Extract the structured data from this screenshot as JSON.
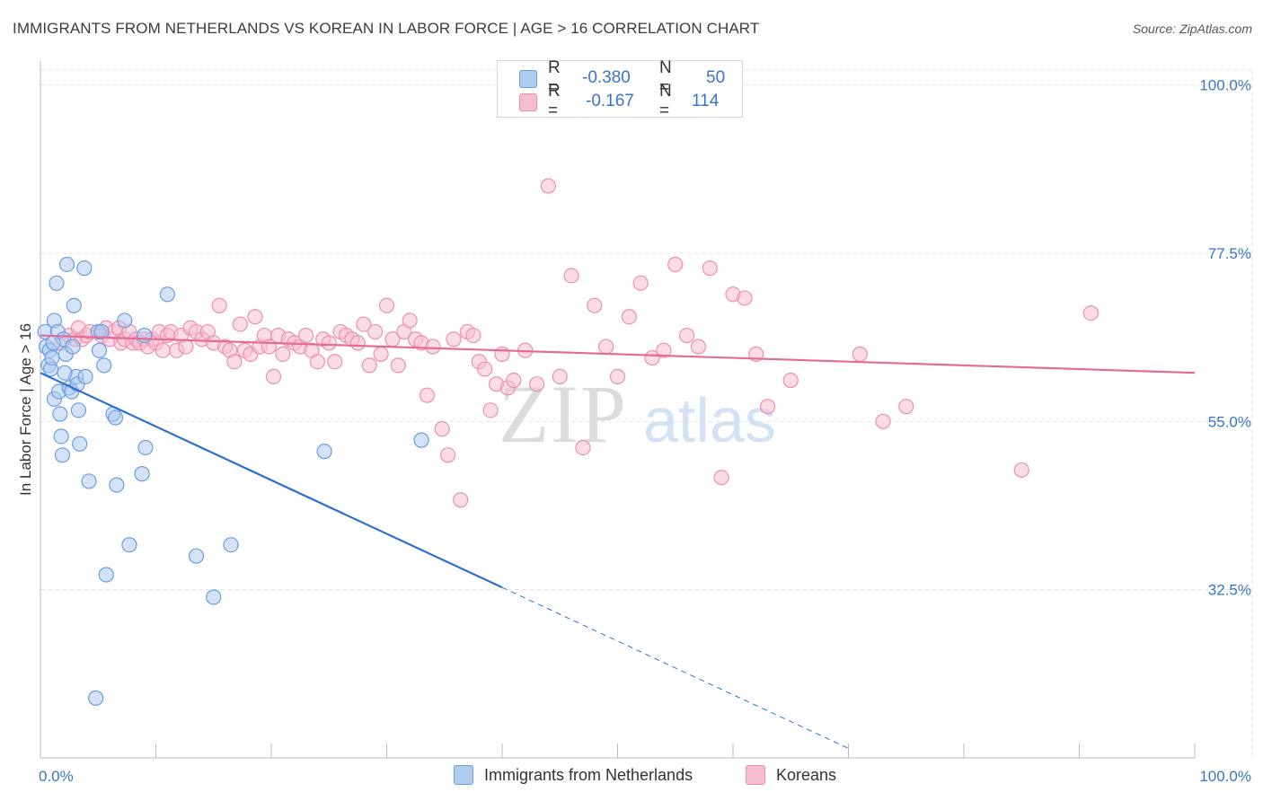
{
  "title": "IMMIGRANTS FROM NETHERLANDS VS KOREAN IN LABOR FORCE | AGE > 16 CORRELATION CHART",
  "source": "Source: ZipAtlas.com",
  "watermark": {
    "zip": "ZIP",
    "atlas": "atlas"
  },
  "legend": {
    "rows": [
      {
        "r_label": "R =",
        "r_value": "-0.380",
        "n_label": "N =",
        "n_value": "50"
      },
      {
        "r_label": "R =",
        "r_value": "-0.167",
        "n_label": "N =",
        "n_value": "114"
      }
    ]
  },
  "bottom_legend": {
    "series1": "Immigrants from Netherlands",
    "series2": "Koreans"
  },
  "colors": {
    "blue_fill": "#aecbf0",
    "blue_stroke": "#6b9de0",
    "blue_line": "#2f6fd1",
    "pink_fill": "#f6bfd1",
    "pink_stroke": "#ec8fb0",
    "pink_line": "#e46b94",
    "axis_label": "#3a74c9",
    "grid": "#e3e3e3"
  },
  "chart_data": {
    "type": "scatter",
    "title": "IMMIGRANTS FROM NETHERLANDS VS KOREAN IN LABOR FORCE | AGE > 16 CORRELATION CHART",
    "xlabel": "",
    "ylabel": "In Labor Force | Age > 16",
    "xlim": [
      0,
      100
    ],
    "ylim": [
      10,
      102
    ],
    "x_tick_labels": [
      "0.0%",
      "100.0%"
    ],
    "y_ticks": [
      32.5,
      55.0,
      77.5,
      100.0
    ],
    "y_tick_labels": [
      "32.5%",
      "55.0%",
      "77.5%",
      "100.0%"
    ],
    "grid": true,
    "legend_position": "top-center",
    "series": [
      {
        "name": "Immigrants from Netherlands",
        "r": -0.38,
        "n": 50,
        "trend": {
          "x0": 0,
          "y0": 61.5,
          "x1": 40,
          "y1": 32.8,
          "dashed_to_x": 70
        },
        "points": [
          [
            0.4,
            67.0
          ],
          [
            0.5,
            65.0
          ],
          [
            0.7,
            62.5
          ],
          [
            0.8,
            64.5
          ],
          [
            0.9,
            62.0
          ],
          [
            1.0,
            63.5
          ],
          [
            1.2,
            58.0
          ],
          [
            1.2,
            68.5
          ],
          [
            1.4,
            73.5
          ],
          [
            1.5,
            67.0
          ],
          [
            1.6,
            59.0
          ],
          [
            1.7,
            56.0
          ],
          [
            1.8,
            53.0
          ],
          [
            1.9,
            50.5
          ],
          [
            2.0,
            66.0
          ],
          [
            2.2,
            64.0
          ],
          [
            2.3,
            76.0
          ],
          [
            2.5,
            59.5
          ],
          [
            2.7,
            59.0
          ],
          [
            2.8,
            65.0
          ],
          [
            2.9,
            70.5
          ],
          [
            3.1,
            61.0
          ],
          [
            3.2,
            60.0
          ],
          [
            3.3,
            56.5
          ],
          [
            3.4,
            52.0
          ],
          [
            3.8,
            75.5
          ],
          [
            3.9,
            61.0
          ],
          [
            4.2,
            47.0
          ],
          [
            4.8,
            18.0
          ],
          [
            5.0,
            67.0
          ],
          [
            5.1,
            64.5
          ],
          [
            5.3,
            67.0
          ],
          [
            5.5,
            62.5
          ],
          [
            5.7,
            34.5
          ],
          [
            6.3,
            56.0
          ],
          [
            6.5,
            55.5
          ],
          [
            6.6,
            46.5
          ],
          [
            7.3,
            68.5
          ],
          [
            7.7,
            38.5
          ],
          [
            8.8,
            48.0
          ],
          [
            9.0,
            66.5
          ],
          [
            9.1,
            51.5
          ],
          [
            11.0,
            72.0
          ],
          [
            13.5,
            37.0
          ],
          [
            15.0,
            31.5
          ],
          [
            16.5,
            38.5
          ],
          [
            24.6,
            51.0
          ],
          [
            33.0,
            52.5
          ],
          [
            1.1,
            65.5
          ],
          [
            2.1,
            61.5
          ]
        ]
      },
      {
        "name": "Koreans",
        "r": -0.167,
        "n": 114,
        "trend": {
          "x0": 0,
          "y0": 66.5,
          "x1": 100,
          "y1": 61.5
        },
        "points": [
          [
            1.8,
            65.5
          ],
          [
            2.5,
            66.5
          ],
          [
            3.0,
            66.0
          ],
          [
            3.3,
            67.5
          ],
          [
            3.6,
            66.0
          ],
          [
            4.0,
            66.5
          ],
          [
            4.3,
            67.0
          ],
          [
            5.0,
            67.0
          ],
          [
            5.3,
            66.5
          ],
          [
            5.7,
            67.5
          ],
          [
            6.0,
            66.0
          ],
          [
            6.4,
            67.0
          ],
          [
            6.8,
            67.5
          ],
          [
            7.0,
            65.5
          ],
          [
            7.3,
            66.0
          ],
          [
            7.7,
            67.0
          ],
          [
            8.0,
            65.5
          ],
          [
            8.3,
            66.0
          ],
          [
            8.6,
            65.5
          ],
          [
            9.0,
            66.0
          ],
          [
            9.3,
            65.0
          ],
          [
            9.7,
            66.0
          ],
          [
            10.0,
            65.5
          ],
          [
            10.3,
            67.0
          ],
          [
            10.6,
            64.5
          ],
          [
            11.0,
            66.5
          ],
          [
            11.3,
            67.0
          ],
          [
            11.8,
            64.5
          ],
          [
            12.2,
            66.5
          ],
          [
            12.6,
            65.0
          ],
          [
            13.0,
            67.5
          ],
          [
            13.5,
            67.0
          ],
          [
            14.0,
            66.0
          ],
          [
            14.5,
            67.0
          ],
          [
            15.0,
            65.5
          ],
          [
            15.5,
            70.5
          ],
          [
            16.0,
            65.0
          ],
          [
            16.4,
            64.5
          ],
          [
            16.8,
            63.0
          ],
          [
            17.3,
            68.0
          ],
          [
            17.7,
            64.5
          ],
          [
            18.2,
            64.0
          ],
          [
            18.6,
            69.0
          ],
          [
            19.0,
            65.0
          ],
          [
            19.4,
            66.5
          ],
          [
            19.8,
            65.0
          ],
          [
            20.2,
            61.0
          ],
          [
            20.6,
            66.5
          ],
          [
            21.0,
            64.0
          ],
          [
            21.5,
            66.0
          ],
          [
            22.0,
            65.5
          ],
          [
            22.5,
            65.0
          ],
          [
            23.0,
            66.5
          ],
          [
            23.5,
            64.5
          ],
          [
            24.0,
            63.0
          ],
          [
            24.5,
            66.0
          ],
          [
            25.0,
            65.5
          ],
          [
            25.5,
            63.0
          ],
          [
            26.0,
            67.0
          ],
          [
            26.5,
            66.5
          ],
          [
            27.0,
            66.0
          ],
          [
            27.5,
            65.5
          ],
          [
            28.0,
            68.0
          ],
          [
            28.5,
            62.5
          ],
          [
            29.0,
            67.0
          ],
          [
            29.5,
            64.0
          ],
          [
            30.0,
            70.5
          ],
          [
            30.5,
            66.0
          ],
          [
            31.0,
            62.5
          ],
          [
            31.5,
            67.0
          ],
          [
            32.0,
            68.5
          ],
          [
            32.5,
            66.0
          ],
          [
            33.0,
            65.5
          ],
          [
            33.5,
            58.5
          ],
          [
            34.0,
            65.0
          ],
          [
            34.8,
            54.0
          ],
          [
            35.3,
            50.5
          ],
          [
            35.8,
            66.0
          ],
          [
            36.4,
            44.5
          ],
          [
            37.0,
            67.0
          ],
          [
            37.5,
            66.5
          ],
          [
            38.0,
            63.0
          ],
          [
            38.5,
            62.0
          ],
          [
            39.0,
            56.5
          ],
          [
            39.5,
            60.0
          ],
          [
            40.0,
            64.0
          ],
          [
            40.5,
            59.5
          ],
          [
            41.0,
            60.5
          ],
          [
            42.0,
            64.5
          ],
          [
            43.0,
            60.0
          ],
          [
            44.0,
            86.5
          ],
          [
            45.0,
            61.0
          ],
          [
            46.0,
            74.5
          ],
          [
            47.0,
            51.5
          ],
          [
            48.0,
            70.5
          ],
          [
            49.0,
            65.0
          ],
          [
            50.0,
            61.0
          ],
          [
            51.0,
            69.0
          ],
          [
            52.0,
            73.5
          ],
          [
            53.0,
            63.5
          ],
          [
            54.0,
            64.5
          ],
          [
            55.0,
            76.0
          ],
          [
            56.0,
            66.5
          ],
          [
            57.0,
            65.0
          ],
          [
            58.0,
            75.5
          ],
          [
            59.0,
            47.5
          ],
          [
            60.0,
            72.0
          ],
          [
            61.0,
            71.5
          ],
          [
            62.0,
            64.0
          ],
          [
            63.0,
            57.0
          ],
          [
            65.0,
            60.5
          ],
          [
            71.0,
            64.0
          ],
          [
            73.0,
            55.0
          ],
          [
            75.0,
            57.0
          ],
          [
            85.0,
            48.5
          ],
          [
            91.0,
            69.5
          ]
        ]
      }
    ]
  }
}
